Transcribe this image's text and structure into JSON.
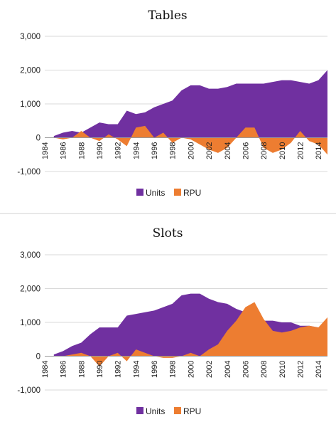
{
  "colors": {
    "units": "#7030a0",
    "rpu": "#ed7d31",
    "grid": "#d9d9d9",
    "divider": "#d0d0d0"
  },
  "chart_data": [
    {
      "type": "area",
      "title": "Tables",
      "ylim": [
        -1000,
        3000
      ],
      "yticks": [
        -1000,
        0,
        1000,
        2000,
        3000
      ],
      "ytick_labels": [
        "-1,000",
        "0",
        "1,000",
        "2,000",
        "3,000"
      ],
      "xlim": [
        1984,
        2015
      ],
      "xticks": [
        1984,
        1986,
        1988,
        1990,
        1992,
        1994,
        1996,
        1998,
        2000,
        2002,
        2004,
        2006,
        2008,
        2010,
        2012,
        2014
      ],
      "xtick_labels": [
        "1984",
        "1986",
        "1988",
        "1990",
        "1992",
        "1994",
        "1996",
        "1998",
        "2000",
        "2002",
        "2004",
        "2006",
        "2008",
        "2010",
        "2012",
        "2014"
      ],
      "grid": true,
      "legend_position": "bottom",
      "x": [
        1985,
        1986,
        1987,
        1988,
        1989,
        1990,
        1991,
        1992,
        1993,
        1994,
        1995,
        1996,
        1997,
        1998,
        1999,
        2000,
        2001,
        2002,
        2003,
        2004,
        2005,
        2006,
        2007,
        2008,
        2009,
        2010,
        2011,
        2012,
        2013,
        2014,
        2015
      ],
      "series": [
        {
          "name": "Units",
          "color": "#7030a0",
          "values": [
            50,
            150,
            200,
            150,
            300,
            450,
            400,
            400,
            800,
            700,
            750,
            900,
            1000,
            1100,
            1400,
            1550,
            1550,
            1450,
            1450,
            1500,
            1600,
            1600,
            1600,
            1600,
            1650,
            1700,
            1700,
            1650,
            1600,
            1700,
            2000
          ]
        },
        {
          "name": "RPU",
          "color": "#ed7d31",
          "values": [
            0,
            -50,
            0,
            200,
            0,
            -100,
            100,
            -50,
            -250,
            300,
            350,
            0,
            150,
            -150,
            0,
            -50,
            -200,
            -350,
            -450,
            -300,
            0,
            300,
            300,
            -300,
            -450,
            -350,
            -150,
            200,
            -100,
            -200,
            -500
          ]
        }
      ]
    },
    {
      "type": "area",
      "title": "Slots",
      "ylim": [
        -1000,
        3000
      ],
      "yticks": [
        -1000,
        0,
        1000,
        2000,
        3000
      ],
      "ytick_labels": [
        "-1,000",
        "0",
        "1,000",
        "2,000",
        "3,000"
      ],
      "xlim": [
        1984,
        2015
      ],
      "xticks": [
        1984,
        1986,
        1988,
        1990,
        1992,
        1994,
        1996,
        1998,
        2000,
        2002,
        2004,
        2006,
        2008,
        2010,
        2012,
        2014
      ],
      "xtick_labels": [
        "1984",
        "1986",
        "1988",
        "1990",
        "1992",
        "1994",
        "1996",
        "1998",
        "2000",
        "2002",
        "2004",
        "2006",
        "2008",
        "2010",
        "2012",
        "2014"
      ],
      "grid": true,
      "legend_position": "bottom",
      "x": [
        1985,
        1986,
        1987,
        1988,
        1989,
        1990,
        1991,
        1992,
        1993,
        1994,
        1995,
        1996,
        1997,
        1998,
        1999,
        2000,
        2001,
        2002,
        2003,
        2004,
        2005,
        2006,
        2007,
        2008,
        2009,
        2010,
        2011,
        2012,
        2013,
        2014,
        2015
      ],
      "series": [
        {
          "name": "Units",
          "color": "#7030a0",
          "values": [
            50,
            150,
            300,
            400,
            650,
            850,
            850,
            850,
            1200,
            1250,
            1300,
            1350,
            1450,
            1550,
            1800,
            1850,
            1850,
            1700,
            1600,
            1550,
            1400,
            1300,
            1100,
            1050,
            1050,
            1000,
            1000,
            900,
            900,
            850,
            800
          ]
        },
        {
          "name": "RPU",
          "color": "#ed7d31",
          "values": [
            0,
            0,
            50,
            100,
            0,
            -300,
            0,
            100,
            -150,
            200,
            100,
            0,
            -50,
            -50,
            0,
            100,
            0,
            200,
            350,
            750,
            1050,
            1450,
            1600,
            1100,
            750,
            700,
            750,
            850,
            900,
            850,
            1150
          ]
        }
      ]
    }
  ]
}
